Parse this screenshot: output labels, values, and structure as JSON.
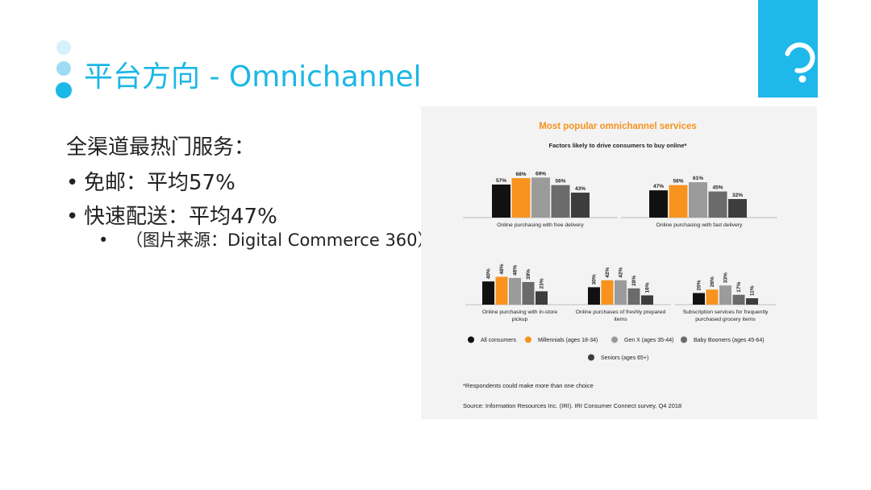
{
  "slide": {
    "title": "平台方向 - Omnichannel",
    "intro": "全渠道最热门服务：",
    "bullets": [
      "免邮：平均57%",
      "快速配送：平均47%"
    ],
    "sub_bullet": "（图片来源：Digital Commerce 360）",
    "colors": {
      "accent": "#1bb7e6",
      "dot_light": "#d6f1fb",
      "dot_mid": "#9fdcf3",
      "dot_dark": "#1bb7e6"
    }
  },
  "chart_data": {
    "type": "bar",
    "title": "Most popular omnichannel services",
    "subtitle": "Factors likely to drive consumers to buy online*",
    "series": [
      {
        "name": "All consumers",
        "color": "#111111"
      },
      {
        "name": "Millennials (ages 18-34)",
        "color": "#f7931e"
      },
      {
        "name": "Gen X (ages 35-44)",
        "color": "#9b9b9b"
      },
      {
        "name": "Baby Boomers (ages 45-64)",
        "color": "#6b6b6b"
      },
      {
        "name": "Seniors (ages 65+)",
        "color": "#3d3d3d"
      }
    ],
    "groups": [
      {
        "label": "Online purchasing with free delivery",
        "values": [
          57,
          68,
          69,
          56,
          43
        ]
      },
      {
        "label": "Online purchasing with fast delivery",
        "values": [
          47,
          56,
          61,
          45,
          32
        ]
      },
      {
        "label": "Online purchasing with in-store pickup",
        "values": [
          40,
          48,
          46,
          39,
          23
        ]
      },
      {
        "label": "Online purchases of freshly prepared items",
        "values": [
          30,
          42,
          42,
          28,
          16
        ]
      },
      {
        "label": "Subscription services for frequently purchased grocery items",
        "values": [
          20,
          26,
          33,
          17,
          11
        ]
      }
    ],
    "footnote": "*Respondents could make more than one choice",
    "source": "Source:  Information Resources Inc. (IRI). IRI Consumer Connect survey, Q4 2018"
  }
}
